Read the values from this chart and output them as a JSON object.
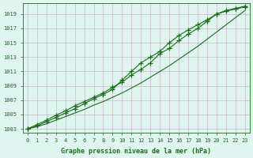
{
  "x": [
    0,
    1,
    2,
    3,
    4,
    5,
    6,
    7,
    8,
    9,
    10,
    11,
    12,
    13,
    14,
    15,
    16,
    17,
    18,
    19,
    20,
    21,
    22,
    23
  ],
  "line1": [
    1003.0,
    1003.6,
    1004.2,
    1004.9,
    1005.5,
    1006.2,
    1006.8,
    1007.4,
    1008.0,
    1008.8,
    1009.5,
    1010.5,
    1011.3,
    1012.2,
    1013.5,
    1014.2,
    1015.3,
    1016.2,
    1017.0,
    1018.0,
    1019.0,
    1019.5,
    1019.8,
    1020.1
  ],
  "line2": [
    1003.0,
    1003.4,
    1004.0,
    1004.6,
    1005.2,
    1005.8,
    1006.5,
    1007.2,
    1007.8,
    1008.5,
    1009.8,
    1011.0,
    1012.2,
    1013.0,
    1013.8,
    1015.0,
    1016.0,
    1016.8,
    1017.5,
    1018.2,
    1019.0,
    1019.4,
    1019.7,
    1020.0
  ],
  "line3": [
    1003.0,
    1003.3,
    1003.7,
    1004.2,
    1004.7,
    1005.2,
    1005.7,
    1006.3,
    1006.8,
    1007.4,
    1008.0,
    1008.7,
    1009.4,
    1010.2,
    1011.0,
    1011.8,
    1012.7,
    1013.6,
    1014.5,
    1015.5,
    1016.5,
    1017.5,
    1018.5,
    1019.5
  ],
  "line_color": "#1a6e1a",
  "bg_color": "#e0f5f0",
  "grid_color": "#c8b8c8",
  "text_color": "#1a6e1a",
  "xlabel": "Graphe pression niveau de la mer (hPa)",
  "yticks": [
    1003,
    1005,
    1007,
    1009,
    1011,
    1013,
    1015,
    1017,
    1019
  ],
  "ylim": [
    1002.5,
    1020.5
  ],
  "xlim": [
    -0.5,
    23.5
  ]
}
